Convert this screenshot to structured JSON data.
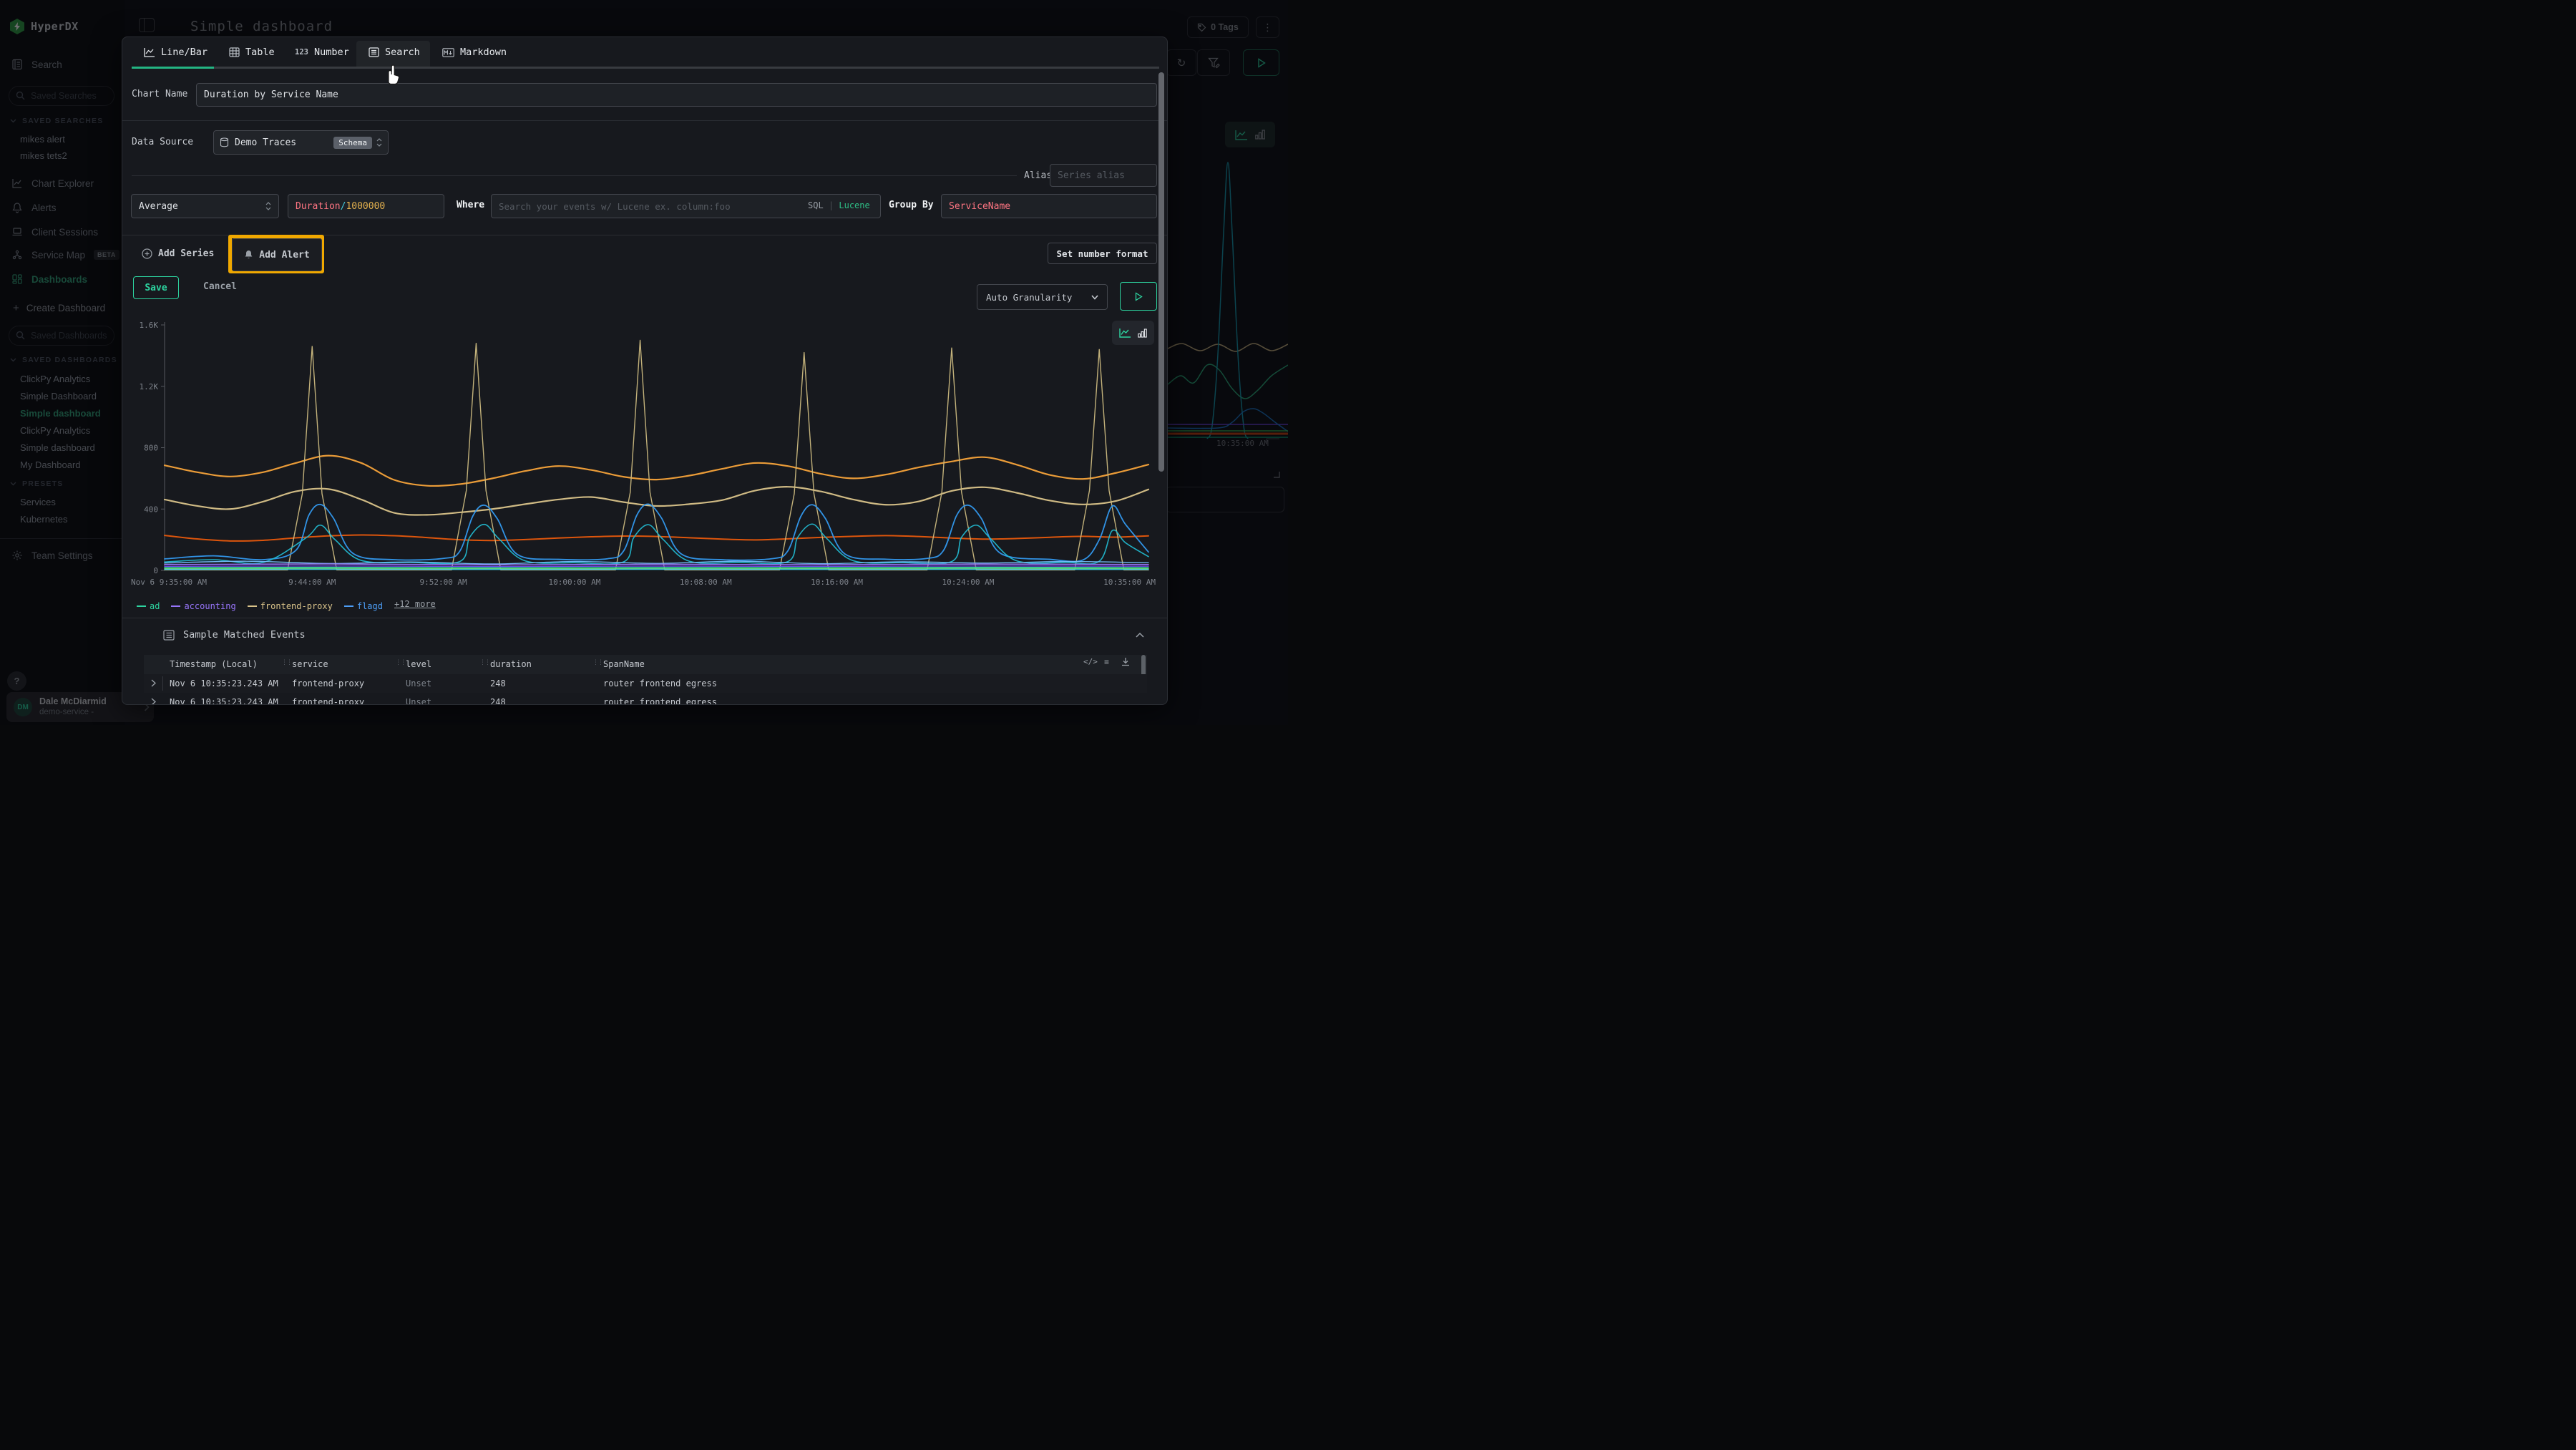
{
  "sidebar": {
    "logo": "HyperDX",
    "nav_search": "Search",
    "saved_searches_placeholder": "Saved Searches",
    "saved_searches_group": "SAVED SEARCHES",
    "saved_searches": [
      "mikes alert",
      "mikes tets2"
    ],
    "nav": [
      {
        "label": "Chart Explorer"
      },
      {
        "label": "Alerts"
      },
      {
        "label": "Client Sessions"
      },
      {
        "label": "Service Map",
        "badge": "BETA"
      },
      {
        "label": "Dashboards"
      }
    ],
    "create_dashboard": "Create Dashboard",
    "saved_dashboards_placeholder": "Saved Dashboards",
    "saved_dashboards_group": "SAVED DASHBOARDS",
    "saved_dashboards": [
      "ClickPy Analytics",
      "Simple Dashboard",
      "Simple dashboard",
      "ClickPy Analytics",
      "Simple dashboard",
      "My Dashboard"
    ],
    "presets_group": "PRESETS",
    "presets": [
      "Services",
      "Kubernetes"
    ],
    "team_settings": "Team Settings",
    "help": "?",
    "user": {
      "initials": "DM",
      "name": "Dale McDiarmid",
      "org": "demo-service -"
    }
  },
  "topbar": {
    "title": "Simple dashboard",
    "tags_label": "0 Tags"
  },
  "modal": {
    "tabs": [
      {
        "label": "Line/Bar"
      },
      {
        "label": "Table"
      },
      {
        "label": "Number",
        "icon_text": "123"
      },
      {
        "label": "Search"
      },
      {
        "label": "Markdown"
      }
    ],
    "chart_name_label": "Chart Name",
    "chart_name_value": "Duration by Service Name",
    "data_source_label": "Data Source",
    "data_source_value": "Demo Traces",
    "schema_badge": "Schema",
    "alias_label": "Alias",
    "alias_placeholder": "Series alias",
    "aggregation": "Average",
    "field_parts": [
      {
        "text": "Duration",
        "color": "#ff7582"
      },
      {
        "text": "/",
        "color": "#44c9dd"
      },
      {
        "text": "1000000",
        "color": "#e3b14f"
      }
    ],
    "where_label": "Where",
    "where_placeholder": "Search your events w/ Lucene ex. column:foo",
    "sql_label": "SQL",
    "lucene_label": "Lucene",
    "group_by_label": "Group By",
    "group_by_value": "ServiceName",
    "add_series": "Add Series",
    "add_alert": "Add Alert",
    "set_number_format": "Set number format",
    "save": "Save",
    "cancel": "Cancel",
    "granularity": "Auto Granularity",
    "annotation_color": "#f0a800",
    "accent_green": "#2dd4a0",
    "sample_events": {
      "title": "Sample Matched Events",
      "columns": [
        "Timestamp (Local)",
        "service",
        "level",
        "duration",
        "SpanName"
      ],
      "rows": [
        [
          "Nov 6 10:35:23.243 AM",
          "frontend-proxy",
          "Unset",
          "248",
          "router frontend egress"
        ],
        [
          "Nov 6 10:35:23.243 AM",
          "frontend-proxy",
          "Unset",
          "248",
          "router frontend egress"
        ]
      ]
    }
  },
  "chart_data": {
    "type": "line",
    "title": "Duration by Service Name",
    "xlim": [
      0,
      60
    ],
    "ylim": [
      0,
      1600
    ],
    "grid": false,
    "legend_position": "bottom",
    "yticks": [
      {
        "v": 0,
        "label": "0"
      },
      {
        "v": 400,
        "label": "400"
      },
      {
        "v": 800,
        "label": "800"
      },
      {
        "v": 1200,
        "label": "1.2K"
      },
      {
        "v": 1600,
        "label": "1.6K"
      }
    ],
    "xticks": [
      {
        "v": 0,
        "label": "Nov 6 9:35:00 AM"
      },
      {
        "v": 9,
        "label": "9:44:00 AM"
      },
      {
        "v": 17,
        "label": "9:52:00 AM"
      },
      {
        "v": 25,
        "label": "10:00:00 AM"
      },
      {
        "v": 33,
        "label": "10:08:00 AM"
      },
      {
        "v": 41,
        "label": "10:16:00 AM"
      },
      {
        "v": 49,
        "label": "10:24:00 AM"
      },
      {
        "v": 60,
        "label": "10:35:00 AM"
      }
    ],
    "legend": [
      {
        "label": "ad",
        "color": "#2dd4a0"
      },
      {
        "label": "accounting",
        "color": "#9775fa"
      },
      {
        "label": "frontend-proxy",
        "color": "#d9c38a"
      },
      {
        "label": "flagd",
        "color": "#4d9ef7"
      }
    ],
    "legend_more": "+12 more",
    "series": [
      {
        "name": "orange-top",
        "color": "#f7a33a",
        "w": 2.2,
        "smooth": true,
        "x": [
          0,
          2,
          4,
          6,
          8,
          10,
          12,
          14,
          16,
          18,
          20,
          22,
          24,
          26,
          28,
          30,
          32,
          34,
          36,
          38,
          40,
          42,
          44,
          46,
          48,
          50,
          52,
          54,
          56,
          58,
          60
        ],
        "y": [
          685,
          640,
          612,
          640,
          700,
          748,
          700,
          590,
          552,
          562,
          600,
          648,
          680,
          655,
          610,
          592,
          618,
          662,
          700,
          680,
          630,
          600,
          625,
          672,
          710,
          738,
          688,
          622,
          596,
          635,
          690
        ]
      },
      {
        "name": "frontend-proxy",
        "color": "#d9c38a",
        "w": 2.2,
        "smooth": true,
        "x": [
          0,
          2,
          4,
          6,
          8,
          10,
          12,
          14,
          16,
          18,
          20,
          22,
          24,
          26,
          28,
          30,
          32,
          34,
          36,
          38,
          40,
          42,
          44,
          46,
          48,
          50,
          52,
          54,
          56,
          58,
          60
        ],
        "y": [
          462,
          420,
          400,
          448,
          515,
          530,
          462,
          375,
          362,
          378,
          400,
          432,
          462,
          478,
          445,
          420,
          432,
          458,
          520,
          545,
          515,
          462,
          428,
          450,
          518,
          542,
          505,
          455,
          430,
          452,
          528
        ]
      },
      {
        "name": "orange-dark",
        "color": "#e8590c",
        "w": 2,
        "smooth": true,
        "x": [
          0,
          2,
          4,
          6,
          8,
          10,
          12,
          14,
          16,
          18,
          20,
          22,
          24,
          26,
          28,
          30,
          32,
          34,
          36,
          38,
          40,
          42,
          44,
          46,
          48,
          50,
          52,
          54,
          56,
          58,
          60
        ],
        "y": [
          228,
          205,
          192,
          196,
          212,
          225,
          231,
          226,
          214,
          200,
          195,
          201,
          211,
          219,
          224,
          221,
          213,
          204,
          199,
          206,
          215,
          222,
          227,
          221,
          211,
          204,
          208,
          216,
          222,
          217,
          225
        ]
      },
      {
        "name": "spikes",
        "color": "#cbb97f",
        "w": 1.4,
        "smooth": false,
        "x": [
          0,
          7.5,
          8.4,
          9,
          9.6,
          10.5,
          17.5,
          18.4,
          19,
          19.6,
          20.5,
          27.5,
          28.4,
          29,
          29.6,
          30.5,
          37.5,
          38.4,
          39,
          39.6,
          40.5,
          46.5,
          47.4,
          48,
          48.6,
          49.5,
          55.5,
          56.4,
          57,
          57.6,
          58.5,
          60
        ],
        "y": [
          3,
          3,
          500,
          1460,
          500,
          3,
          3,
          520,
          1480,
          520,
          3,
          3,
          510,
          1500,
          510,
          3,
          3,
          500,
          1420,
          500,
          3,
          3,
          510,
          1450,
          510,
          3,
          3,
          520,
          1440,
          520,
          3,
          3
        ]
      },
      {
        "name": "flagd-blue",
        "color": "#339af0",
        "w": 1.8,
        "smooth": true,
        "x": [
          0,
          3,
          6,
          8,
          8.8,
          9.5,
          10.3,
          11.5,
          14,
          17,
          18,
          18.8,
          19.5,
          20.3,
          21.5,
          24,
          27,
          28,
          28.8,
          29.5,
          30.3,
          31.5,
          34,
          37,
          38,
          38.8,
          39.5,
          40.3,
          41.5,
          44,
          46.5,
          47.5,
          48.3,
          49,
          49.8,
          51,
          54,
          56,
          57,
          57.8,
          58.6,
          60
        ],
        "y": [
          75,
          95,
          70,
          130,
          360,
          430,
          340,
          110,
          70,
          78,
          125,
          355,
          425,
          335,
          105,
          72,
          76,
          128,
          360,
          432,
          342,
          108,
          70,
          76,
          126,
          352,
          428,
          338,
          106,
          73,
          78,
          130,
          358,
          425,
          340,
          110,
          72,
          68,
          200,
          420,
          300,
          120
        ]
      },
      {
        "name": "cyan",
        "color": "#22b8cf",
        "w": 1.6,
        "smooth": true,
        "x": [
          0,
          3,
          6,
          8.6,
          9.5,
          10.4,
          12,
          15,
          18,
          18.6,
          19.5,
          20.4,
          22,
          25,
          28,
          28.6,
          29.5,
          30.4,
          32,
          35,
          38,
          38.6,
          39.5,
          40.4,
          42,
          45,
          48,
          48.6,
          49.5,
          50.4,
          52,
          55,
          57,
          57.8,
          58.6,
          60
        ],
        "y": [
          55,
          70,
          52,
          210,
          295,
          200,
          65,
          52,
          58,
          215,
          300,
          205,
          62,
          50,
          56,
          212,
          298,
          202,
          60,
          52,
          57,
          214,
          302,
          206,
          63,
          51,
          58,
          216,
          295,
          204,
          61,
          52,
          60,
          260,
          180,
          90
        ]
      },
      {
        "name": "lightblue",
        "color": "#74c0fc",
        "w": 1.4,
        "smooth": true,
        "x": [
          0,
          5,
          10,
          15,
          20,
          25,
          30,
          35,
          40,
          45,
          50,
          55,
          60
        ],
        "y": [
          48,
          60,
          45,
          55,
          42,
          58,
          46,
          60,
          44,
          56,
          48,
          58,
          50
        ]
      },
      {
        "name": "accounting",
        "color": "#9775fa",
        "w": 1.6,
        "smooth": true,
        "x": [
          0,
          10,
          20,
          30,
          40,
          50,
          60
        ],
        "y": [
          38,
          42,
          36,
          40,
          37,
          41,
          38
        ]
      },
      {
        "name": "violet",
        "color": "#7048e8",
        "w": 1.4,
        "smooth": true,
        "x": [
          0,
          10,
          20,
          30,
          40,
          50,
          60
        ],
        "y": [
          26,
          29,
          25,
          28,
          26,
          29,
          27
        ]
      },
      {
        "name": "ad",
        "color": "#2dd4a0",
        "w": 1.6,
        "smooth": true,
        "x": [
          0,
          10,
          20,
          30,
          40,
          50,
          60
        ],
        "y": [
          18,
          20,
          17,
          19,
          18,
          20,
          18
        ]
      },
      {
        "name": "green",
        "color": "#69db7c",
        "w": 1.4,
        "smooth": true,
        "x": [
          0,
          10,
          20,
          30,
          40,
          50,
          60
        ],
        "y": [
          12,
          13,
          11,
          12,
          12,
          13,
          12
        ]
      },
      {
        "name": "cyan2",
        "color": "#3bc9db",
        "w": 1.4,
        "smooth": true,
        "x": [
          0,
          10,
          20,
          30,
          40,
          50,
          60
        ],
        "y": [
          6,
          7,
          6,
          7,
          6,
          7,
          6
        ]
      }
    ]
  },
  "bg_chart": {
    "label": "10:35:00 AM",
    "series": [
      {
        "color": "#d9c38a",
        "w": 1.5,
        "smooth": true,
        "pts": [
          [
            0,
            322
          ],
          [
            20,
            315
          ],
          [
            45,
            325
          ],
          [
            70,
            316
          ],
          [
            95,
            326
          ],
          [
            120,
            315
          ],
          [
            145,
            325
          ],
          [
            168,
            316
          ]
        ]
      },
      {
        "color": "#2ebd85",
        "w": 1.5,
        "smooth": true,
        "pts": [
          [
            0,
            372
          ],
          [
            18,
            360
          ],
          [
            36,
            370
          ],
          [
            55,
            345
          ],
          [
            72,
            352
          ],
          [
            90,
            378
          ],
          [
            108,
            392
          ],
          [
            126,
            380
          ],
          [
            145,
            360
          ],
          [
            168,
            345
          ]
        ]
      },
      {
        "color": "#15aabf",
        "w": 1.5,
        "smooth": true,
        "pts": [
          [
            55,
            448
          ],
          [
            62,
            430
          ],
          [
            70,
            330
          ],
          [
            78,
            160
          ],
          [
            84,
            62
          ],
          [
            90,
            160
          ],
          [
            98,
            330
          ],
          [
            106,
            430
          ],
          [
            112,
            448
          ]
        ]
      },
      {
        "color": "#7048e8",
        "w": 1.5,
        "smooth": false,
        "pts": [
          [
            0,
            428
          ],
          [
            168,
            428
          ]
        ]
      },
      {
        "color": "#1c7ed6",
        "w": 1.5,
        "smooth": true,
        "pts": [
          [
            0,
            433
          ],
          [
            70,
            433
          ],
          [
            90,
            425
          ],
          [
            106,
            410
          ],
          [
            120,
            406
          ],
          [
            133,
            412
          ],
          [
            150,
            425
          ],
          [
            168,
            438
          ]
        ]
      },
      {
        "color": "#40c057",
        "w": 1.5,
        "smooth": false,
        "pts": [
          [
            0,
            437
          ],
          [
            168,
            437
          ]
        ]
      },
      {
        "color": "#d9480f",
        "w": 3,
        "smooth": false,
        "pts": [
          [
            0,
            441
          ],
          [
            168,
            441
          ]
        ]
      },
      {
        "color": "#0ca678",
        "w": 1.5,
        "smooth": false,
        "pts": [
          [
            0,
            446
          ],
          [
            168,
            446
          ]
        ]
      },
      {
        "color": "#55595f",
        "w": 1,
        "smooth": false,
        "pts": [
          [
            138,
            456
          ],
          [
            138,
            448
          ],
          [
            156,
            448
          ]
        ]
      }
    ]
  }
}
